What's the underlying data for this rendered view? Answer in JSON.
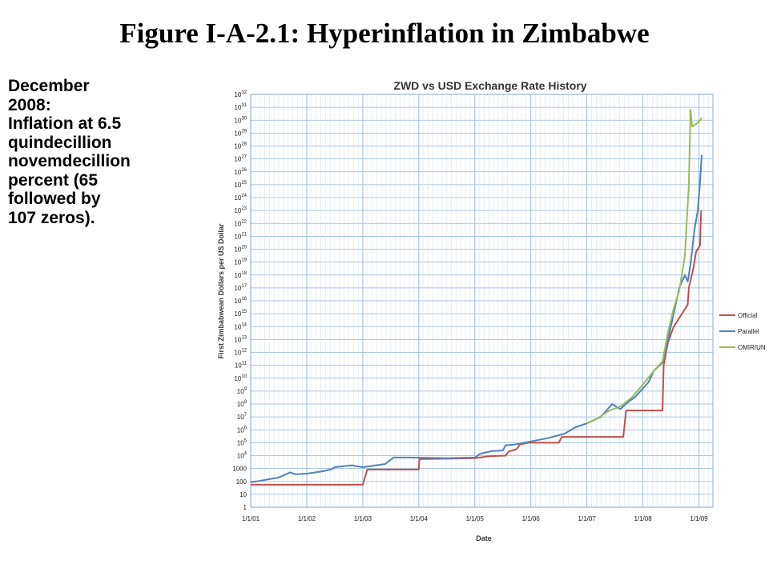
{
  "slide": {
    "title": "Figure I-A-2.1: Hyperinflation in Zimbabwe",
    "note_lines": [
      "December",
      "2008:",
      "Inflation at 6.5",
      "quindecillion",
      "novemdecillion",
      "percent (65",
      "followed by",
      "107 zeros)."
    ]
  },
  "chart_data": {
    "type": "line",
    "title": "ZWD vs USD Exchange Rate History",
    "xlabel": "Date",
    "ylabel": "First Zimbabwean Dollars per US Dollar",
    "y_scale": "log10",
    "ylim_exp": [
      0,
      32
    ],
    "y_tick_labels": [
      "1",
      "10",
      "100",
      "1000",
      "10^4",
      "10^5",
      "10^6",
      "10^7",
      "10^8",
      "10^9",
      "10^10",
      "10^11",
      "10^12",
      "10^13",
      "10^14",
      "10^15",
      "10^16",
      "10^17",
      "10^18",
      "10^19",
      "10^20",
      "10^21",
      "10^22",
      "10^23",
      "10^24",
      "10^25",
      "10^26",
      "10^27",
      "10^28",
      "10^29",
      "10^30",
      "10^31",
      "10^32"
    ],
    "x_tick_labels": [
      "1/1/01",
      "1/1/02",
      "1/1/03",
      "1/1/04",
      "1/1/05",
      "1/1/06",
      "1/1/07",
      "1/1/08",
      "1/1/09"
    ],
    "xlim_years": [
      2001.0,
      2009.25
    ],
    "grid": true,
    "legend_position": "right",
    "series": [
      {
        "name": "Official",
        "color": "#c0504d",
        "points": [
          [
            2001.0,
            1.74
          ],
          [
            2003.0,
            1.74
          ],
          [
            2003.08,
            2.92
          ],
          [
            2004.0,
            2.92
          ],
          [
            2004.01,
            3.73
          ],
          [
            2005.0,
            3.8
          ],
          [
            2005.25,
            3.95
          ],
          [
            2005.55,
            4.0
          ],
          [
            2005.6,
            4.3
          ],
          [
            2005.75,
            4.5
          ],
          [
            2005.8,
            4.85
          ],
          [
            2005.95,
            5.0
          ],
          [
            2006.5,
            5.0
          ],
          [
            2006.55,
            5.45
          ],
          [
            2007.65,
            5.45
          ],
          [
            2007.7,
            7.5
          ],
          [
            2008.35,
            7.5
          ],
          [
            2008.37,
            11.0
          ],
          [
            2008.45,
            12.8
          ],
          [
            2008.55,
            14.0
          ],
          [
            2008.7,
            15.0
          ],
          [
            2008.8,
            15.7
          ],
          [
            2008.82,
            17.0
          ],
          [
            2008.9,
            18.5
          ],
          [
            2008.95,
            19.8
          ],
          [
            2009.02,
            20.3
          ],
          [
            2009.04,
            23.0
          ]
        ]
      },
      {
        "name": "Parallel",
        "color": "#4f81bd",
        "points": [
          [
            2001.0,
            1.95
          ],
          [
            2001.1,
            2.0
          ],
          [
            2001.3,
            2.15
          ],
          [
            2001.5,
            2.3
          ],
          [
            2001.6,
            2.5
          ],
          [
            2001.7,
            2.7
          ],
          [
            2001.8,
            2.55
          ],
          [
            2002.0,
            2.6
          ],
          [
            2002.3,
            2.8
          ],
          [
            2002.45,
            2.95
          ],
          [
            2002.5,
            3.1
          ],
          [
            2002.8,
            3.25
          ],
          [
            2003.0,
            3.1
          ],
          [
            2003.4,
            3.35
          ],
          [
            2003.55,
            3.85
          ],
          [
            2003.8,
            3.85
          ],
          [
            2004.5,
            3.8
          ],
          [
            2005.0,
            3.85
          ],
          [
            2005.1,
            4.15
          ],
          [
            2005.3,
            4.35
          ],
          [
            2005.5,
            4.4
          ],
          [
            2005.55,
            4.8
          ],
          [
            2005.7,
            4.85
          ],
          [
            2006.0,
            5.1
          ],
          [
            2006.3,
            5.35
          ],
          [
            2006.6,
            5.7
          ],
          [
            2006.8,
            6.2
          ],
          [
            2007.0,
            6.5
          ],
          [
            2007.25,
            7.0
          ],
          [
            2007.45,
            8.0
          ],
          [
            2007.6,
            7.6
          ],
          [
            2007.75,
            8.2
          ],
          [
            2007.85,
            8.5
          ],
          [
            2008.0,
            9.2
          ],
          [
            2008.1,
            9.7
          ],
          [
            2008.2,
            10.6
          ],
          [
            2008.35,
            11.2
          ],
          [
            2008.45,
            13.0
          ],
          [
            2008.55,
            15.0
          ],
          [
            2008.65,
            17.0
          ],
          [
            2008.75,
            18.0
          ],
          [
            2008.8,
            17.5
          ],
          [
            2008.85,
            18.8
          ],
          [
            2008.92,
            21.5
          ],
          [
            2008.98,
            23.0
          ],
          [
            2009.02,
            25.2
          ],
          [
            2009.05,
            27.3
          ]
        ]
      },
      {
        "name": "OMIR/UN",
        "color": "#9bbb59",
        "points": [
          [
            2007.0,
            6.5
          ],
          [
            2007.2,
            6.9
          ],
          [
            2007.4,
            7.5
          ],
          [
            2007.6,
            7.8
          ],
          [
            2007.8,
            8.5
          ],
          [
            2008.0,
            9.5
          ],
          [
            2008.2,
            10.6
          ],
          [
            2008.35,
            11.3
          ],
          [
            2008.45,
            13.6
          ],
          [
            2008.55,
            15.4
          ],
          [
            2008.65,
            16.8
          ],
          [
            2008.75,
            19.5
          ],
          [
            2008.82,
            25.0
          ],
          [
            2008.85,
            30.8
          ],
          [
            2008.88,
            29.5
          ],
          [
            2008.95,
            29.7
          ],
          [
            2009.02,
            30.0
          ],
          [
            2009.05,
            30.2
          ]
        ]
      }
    ]
  }
}
